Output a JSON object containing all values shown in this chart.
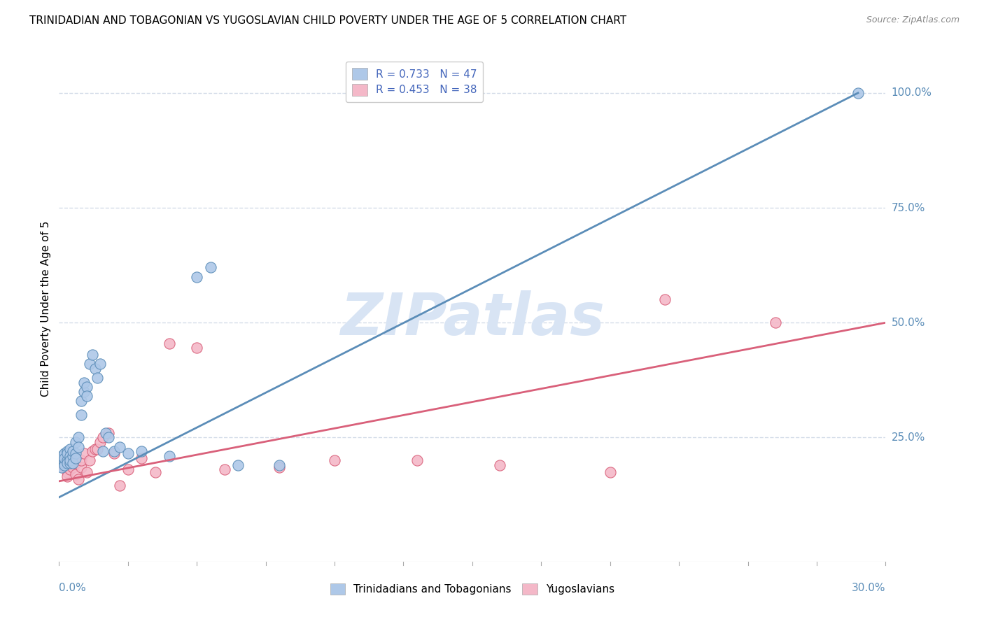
{
  "title": "TRINIDADIAN AND TOBAGONIAN VS YUGOSLAVIAN CHILD POVERTY UNDER THE AGE OF 5 CORRELATION CHART",
  "source": "Source: ZipAtlas.com",
  "ylabel": "Child Poverty Under the Age of 5",
  "watermark": "ZIPatlas",
  "legend_entries": [
    {
      "label": "R = 0.733   N = 47",
      "color": "#aec6e8"
    },
    {
      "label": "R = 0.453   N = 38",
      "color": "#f4b8c8"
    }
  ],
  "legend_bottom": [
    {
      "label": "Trinidadians and Tobagonians",
      "color": "#aec6e8"
    },
    {
      "label": "Yugoslavians",
      "color": "#f4b8c8"
    }
  ],
  "blue_scatter_x": [
    0.001,
    0.001,
    0.001,
    0.002,
    0.002,
    0.002,
    0.002,
    0.003,
    0.003,
    0.003,
    0.003,
    0.004,
    0.004,
    0.004,
    0.004,
    0.005,
    0.005,
    0.005,
    0.006,
    0.006,
    0.006,
    0.007,
    0.007,
    0.008,
    0.008,
    0.009,
    0.009,
    0.01,
    0.01,
    0.011,
    0.012,
    0.013,
    0.014,
    0.015,
    0.016,
    0.017,
    0.018,
    0.02,
    0.022,
    0.025,
    0.03,
    0.04,
    0.05,
    0.055,
    0.065,
    0.08,
    0.29
  ],
  "blue_scatter_y": [
    0.2,
    0.21,
    0.185,
    0.215,
    0.195,
    0.19,
    0.205,
    0.22,
    0.2,
    0.215,
    0.195,
    0.225,
    0.21,
    0.195,
    0.2,
    0.21,
    0.22,
    0.195,
    0.24,
    0.215,
    0.205,
    0.25,
    0.23,
    0.33,
    0.3,
    0.35,
    0.37,
    0.36,
    0.34,
    0.41,
    0.43,
    0.4,
    0.38,
    0.41,
    0.22,
    0.26,
    0.25,
    0.22,
    0.23,
    0.215,
    0.22,
    0.21,
    0.6,
    0.62,
    0.19,
    0.19,
    1.0
  ],
  "pink_scatter_x": [
    0.001,
    0.002,
    0.002,
    0.003,
    0.003,
    0.004,
    0.004,
    0.005,
    0.005,
    0.006,
    0.006,
    0.007,
    0.008,
    0.008,
    0.009,
    0.01,
    0.011,
    0.012,
    0.013,
    0.014,
    0.015,
    0.016,
    0.018,
    0.02,
    0.022,
    0.025,
    0.03,
    0.035,
    0.04,
    0.05,
    0.06,
    0.08,
    0.1,
    0.13,
    0.16,
    0.2,
    0.22,
    0.26
  ],
  "pink_scatter_y": [
    0.195,
    0.185,
    0.2,
    0.175,
    0.165,
    0.19,
    0.18,
    0.2,
    0.185,
    0.195,
    0.17,
    0.16,
    0.185,
    0.2,
    0.215,
    0.175,
    0.2,
    0.22,
    0.225,
    0.225,
    0.24,
    0.25,
    0.26,
    0.215,
    0.145,
    0.18,
    0.205,
    0.175,
    0.455,
    0.445,
    0.18,
    0.185,
    0.2,
    0.2,
    0.19,
    0.175,
    0.55,
    0.5
  ],
  "blue_line_x": [
    0.0,
    0.29
  ],
  "blue_line_y": [
    0.12,
    1.0
  ],
  "pink_line_x": [
    0.0,
    0.3
  ],
  "pink_line_y": [
    0.155,
    0.5
  ],
  "xlim": [
    0.0,
    0.3
  ],
  "ylim": [
    -0.02,
    1.08
  ],
  "grid_color": "#d4dce8",
  "blue_color": "#5b8db8",
  "blue_scatter_color": "#aec8e8",
  "pink_color": "#d9607a",
  "pink_scatter_color": "#f4b8c8",
  "title_fontsize": 11,
  "watermark_color": "#d8e4f4",
  "watermark_fontsize": 60,
  "legend_text_color": "#4466bb"
}
